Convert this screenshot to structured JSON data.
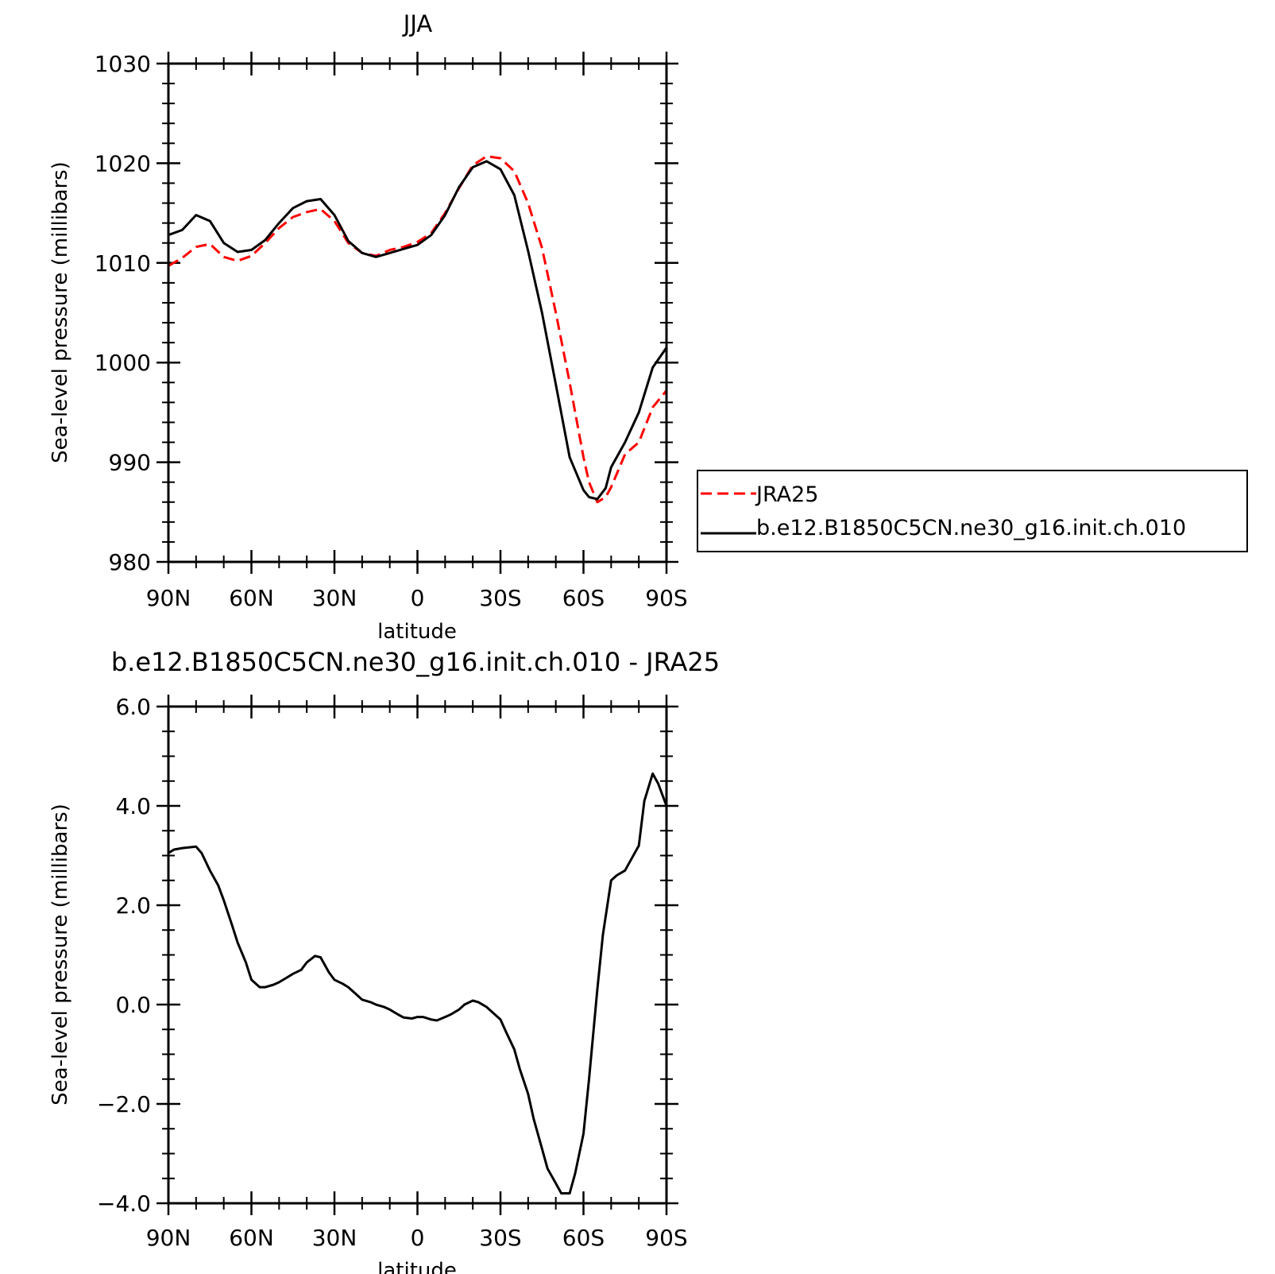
{
  "chart_data": [
    {
      "type": "line",
      "title": "JJA",
      "xlabel": "latitude",
      "ylabel": "Sea-level pressure (millibars)",
      "x_ticks": [
        {
          "value": 90,
          "label": "90N"
        },
        {
          "value": 60,
          "label": "60N"
        },
        {
          "value": 30,
          "label": "30N"
        },
        {
          "value": 0,
          "label": "0"
        },
        {
          "value": -30,
          "label": "30S"
        },
        {
          "value": -60,
          "label": "60S"
        },
        {
          "value": -90,
          "label": "90S"
        }
      ],
      "y_ticks": [
        {
          "value": 980,
          "label": "980"
        },
        {
          "value": 990,
          "label": "990"
        },
        {
          "value": 1000,
          "label": "1000"
        },
        {
          "value": 1010,
          "label": "1010"
        },
        {
          "value": 1020,
          "label": "1020"
        },
        {
          "value": 1030,
          "label": "1030"
        }
      ],
      "xlim": [
        90,
        -90
      ],
      "ylim": [
        980,
        1030
      ],
      "grid": false,
      "legend_position": "right",
      "series": [
        {
          "name": "JRA25",
          "color": "#ff0000",
          "dash": true,
          "x": [
            90,
            85,
            80,
            75,
            70,
            65,
            60,
            55,
            50,
            45,
            40,
            35,
            30,
            25,
            20,
            15,
            10,
            5,
            0,
            -5,
            -10,
            -15,
            -20,
            -25,
            -30,
            -35,
            -40,
            -45,
            -50,
            -55,
            -60,
            -62,
            -65,
            -68,
            -70,
            -75,
            -80,
            -85,
            -90
          ],
          "values": [
            1009.7,
            1010.5,
            1011.6,
            1011.9,
            1010.6,
            1010.2,
            1010.7,
            1012.0,
            1013.5,
            1014.6,
            1015.1,
            1015.4,
            1014.2,
            1012.0,
            1011.0,
            1010.7,
            1011.3,
            1011.6,
            1012.1,
            1013.0,
            1015.0,
            1017.5,
            1019.8,
            1020.7,
            1020.5,
            1019.2,
            1016.0,
            1011.5,
            1005.0,
            998.0,
            990.5,
            988.0,
            986.0,
            986.5,
            987.5,
            990.8,
            992.0,
            995.5,
            997.2
          ]
        },
        {
          "name": "b.e12.B1850C5CN.ne30_g16.init.ch.010",
          "color": "#000000",
          "dash": false,
          "x": [
            90,
            85,
            80,
            75,
            70,
            65,
            60,
            55,
            50,
            45,
            40,
            35,
            30,
            25,
            20,
            15,
            10,
            5,
            0,
            -5,
            -10,
            -15,
            -20,
            -25,
            -30,
            -35,
            -40,
            -45,
            -50,
            -55,
            -60,
            -62,
            -65,
            -68,
            -70,
            -75,
            -80,
            -85,
            -90
          ],
          "values": [
            1012.8,
            1013.3,
            1014.8,
            1014.2,
            1012.0,
            1011.1,
            1011.3,
            1012.3,
            1014.0,
            1015.5,
            1016.2,
            1016.4,
            1014.8,
            1012.2,
            1011.0,
            1010.6,
            1011.0,
            1011.4,
            1011.8,
            1012.8,
            1014.8,
            1017.6,
            1019.6,
            1020.2,
            1019.4,
            1016.8,
            1011.2,
            1005.0,
            997.8,
            990.5,
            987.2,
            986.5,
            986.3,
            987.4,
            989.5,
            992.0,
            995.0,
            999.5,
            1001.5
          ]
        }
      ]
    },
    {
      "type": "line",
      "title": "b.e12.B1850C5CN.ne30_g16.init.ch.010 - JRA25",
      "xlabel": "latitude",
      "ylabel": "Sea-level pressure (millibars)",
      "x_ticks": [
        {
          "value": 90,
          "label": "90N"
        },
        {
          "value": 60,
          "label": "60N"
        },
        {
          "value": 30,
          "label": "30N"
        },
        {
          "value": 0,
          "label": "0"
        },
        {
          "value": -30,
          "label": "30S"
        },
        {
          "value": -60,
          "label": "60S"
        },
        {
          "value": -90,
          "label": "90S"
        }
      ],
      "y_ticks": [
        {
          "value": -4,
          "label": "−4.0"
        },
        {
          "value": -2,
          "label": "−2.0"
        },
        {
          "value": 0,
          "label": "0.0"
        },
        {
          "value": 2,
          "label": "2.0"
        },
        {
          "value": 4,
          "label": "4.0"
        },
        {
          "value": 6,
          "label": "6.0"
        }
      ],
      "xlim": [
        90,
        -90
      ],
      "ylim": [
        -4,
        6
      ],
      "grid": false,
      "series": [
        {
          "color": "#000000",
          "dash": false,
          "x": [
            90,
            88,
            85,
            80,
            78,
            75,
            72,
            70,
            67,
            65,
            62,
            60,
            57,
            55,
            52,
            50,
            47,
            45,
            42,
            40,
            37,
            35,
            32,
            30,
            27,
            25,
            22,
            20,
            17,
            15,
            12,
            10,
            7,
            5,
            2,
            0,
            -2,
            -5,
            -7,
            -10,
            -12,
            -15,
            -17,
            -20,
            -22,
            -25,
            -27,
            -30,
            -32,
            -35,
            -37,
            -40,
            -42,
            -45,
            -47,
            -50,
            -52,
            -55,
            -57,
            -60,
            -62,
            -65,
            -67,
            -70,
            -72,
            -75,
            -77,
            -80,
            -82,
            -85,
            -87,
            -90
          ],
          "values": [
            3.05,
            3.12,
            3.15,
            3.18,
            3.05,
            2.7,
            2.4,
            2.1,
            1.6,
            1.25,
            0.85,
            0.5,
            0.35,
            0.35,
            0.4,
            0.45,
            0.55,
            0.62,
            0.7,
            0.85,
            0.98,
            0.95,
            0.65,
            0.5,
            0.42,
            0.35,
            0.2,
            0.1,
            0.05,
            0.0,
            -0.05,
            -0.1,
            -0.2,
            -0.26,
            -0.28,
            -0.25,
            -0.25,
            -0.3,
            -0.32,
            -0.25,
            -0.2,
            -0.1,
            0.0,
            0.08,
            0.05,
            -0.05,
            -0.15,
            -0.3,
            -0.55,
            -0.9,
            -1.3,
            -1.8,
            -2.3,
            -2.9,
            -3.3,
            -3.6,
            -3.8,
            -3.8,
            -3.4,
            -2.6,
            -1.5,
            0.3,
            1.4,
            2.5,
            2.6,
            2.7,
            2.9,
            3.2,
            4.1,
            4.65,
            4.45,
            4.0
          ]
        }
      ]
    }
  ]
}
